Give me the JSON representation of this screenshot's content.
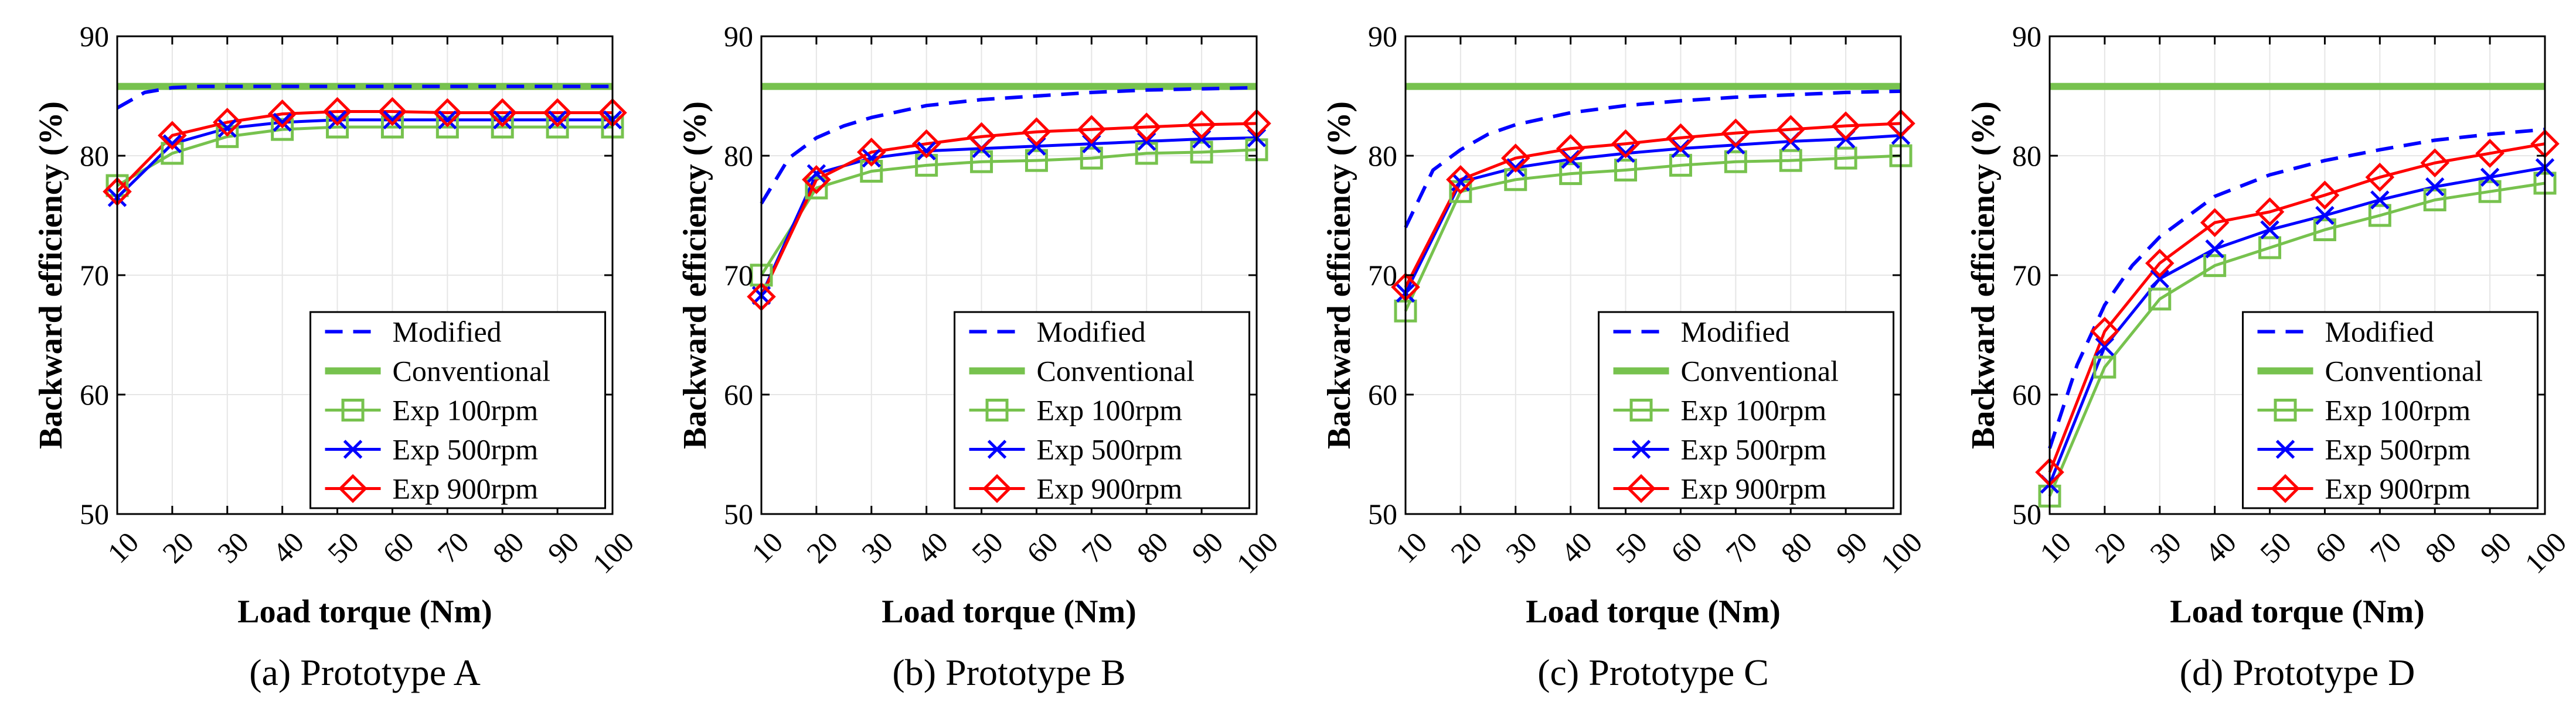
{
  "figure": {
    "captions": [
      "(a) Prototype A",
      "(b) Prototype B",
      "(c) Prototype C",
      "(d) Prototype D"
    ]
  },
  "legend": {
    "modified": "Modified",
    "conventional": "Conventional",
    "exp100": "Exp 100rpm",
    "exp500": "Exp 500rpm",
    "exp900": "Exp 900rpm"
  },
  "colors": {
    "modified": "#0000ff",
    "conventional": "#77c24e",
    "exp100": "#77c24e",
    "exp500": "#0000ff",
    "exp900": "#ff0000"
  },
  "chart_data": [
    {
      "type": "line",
      "title": "(a) Prototype A",
      "xlabel": "Load torque (Nm)",
      "ylabel": "Backward efficiency (%)",
      "xlim": [
        10,
        100
      ],
      "ylim": [
        50,
        90
      ],
      "yticks": [
        50,
        60,
        70,
        80,
        90
      ],
      "xticks": [
        10,
        20,
        30,
        40,
        50,
        60,
        70,
        80,
        90,
        100
      ],
      "grid": true,
      "legend_position": "bottom-right",
      "series": [
        {
          "name": "Modified",
          "style": "dashed",
          "x": [
            10,
            15,
            20,
            25,
            30,
            40,
            50,
            60,
            70,
            80,
            90,
            100
          ],
          "values": [
            84.0,
            85.3,
            85.7,
            85.8,
            85.8,
            85.8,
            85.8,
            85.8,
            85.8,
            85.8,
            85.8,
            85.8
          ]
        },
        {
          "name": "Conventional",
          "style": "solid-thick",
          "x": [
            10,
            100
          ],
          "values": [
            85.8,
            85.8
          ]
        },
        {
          "name": "Exp 100rpm",
          "marker": "square",
          "x": [
            10,
            20,
            30,
            40,
            50,
            60,
            70,
            80,
            90,
            100
          ],
          "values": [
            77.5,
            80.2,
            81.6,
            82.2,
            82.4,
            82.4,
            82.4,
            82.4,
            82.4,
            82.4
          ]
        },
        {
          "name": "Exp 500rpm",
          "marker": "x",
          "x": [
            10,
            20,
            30,
            40,
            50,
            60,
            70,
            80,
            90,
            100
          ],
          "values": [
            76.5,
            81.0,
            82.3,
            82.8,
            83.0,
            83.0,
            83.0,
            83.0,
            83.0,
            83.0
          ]
        },
        {
          "name": "Exp 900rpm",
          "marker": "diamond",
          "x": [
            10,
            20,
            30,
            40,
            50,
            60,
            70,
            80,
            90,
            100
          ],
          "values": [
            77.0,
            81.7,
            82.8,
            83.5,
            83.7,
            83.7,
            83.6,
            83.6,
            83.6,
            83.6
          ]
        }
      ]
    },
    {
      "type": "line",
      "title": "(b) Prototype B",
      "xlabel": "Load torque (Nm)",
      "ylabel": "Backward efficiency (%)",
      "xlim": [
        10,
        100
      ],
      "ylim": [
        50,
        90
      ],
      "yticks": [
        50,
        60,
        70,
        80,
        90
      ],
      "xticks": [
        10,
        20,
        30,
        40,
        50,
        60,
        70,
        80,
        90,
        100
      ],
      "grid": true,
      "legend_position": "bottom-right",
      "series": [
        {
          "name": "Modified",
          "style": "dashed",
          "x": [
            10,
            15,
            20,
            25,
            30,
            40,
            50,
            60,
            70,
            80,
            90,
            100
          ],
          "values": [
            76.0,
            79.8,
            81.5,
            82.5,
            83.2,
            84.2,
            84.7,
            85.0,
            85.3,
            85.5,
            85.6,
            85.7
          ]
        },
        {
          "name": "Conventional",
          "style": "solid-thick",
          "x": [
            10,
            100
          ],
          "values": [
            85.8,
            85.8
          ]
        },
        {
          "name": "Exp 100rpm",
          "marker": "square",
          "x": [
            10,
            20,
            30,
            40,
            50,
            60,
            70,
            80,
            90,
            100
          ],
          "values": [
            70.0,
            77.3,
            78.7,
            79.2,
            79.5,
            79.6,
            79.8,
            80.2,
            80.3,
            80.5
          ]
        },
        {
          "name": "Exp 500rpm",
          "marker": "x",
          "x": [
            10,
            20,
            30,
            40,
            50,
            60,
            70,
            80,
            90,
            100
          ],
          "values": [
            68.3,
            78.5,
            79.8,
            80.4,
            80.6,
            80.8,
            81.0,
            81.2,
            81.4,
            81.5
          ]
        },
        {
          "name": "Exp 900rpm",
          "marker": "diamond",
          "x": [
            10,
            20,
            30,
            40,
            50,
            60,
            70,
            80,
            90,
            100
          ],
          "values": [
            68.2,
            78.0,
            80.3,
            81.0,
            81.6,
            82.0,
            82.2,
            82.4,
            82.6,
            82.7
          ]
        }
      ]
    },
    {
      "type": "line",
      "title": "(c) Prototype C",
      "xlabel": "Load torque (Nm)",
      "ylabel": "Backward efficiency (%)",
      "xlim": [
        10,
        100
      ],
      "ylim": [
        50,
        90
      ],
      "yticks": [
        50,
        60,
        70,
        80,
        90
      ],
      "xticks": [
        10,
        20,
        30,
        40,
        50,
        60,
        70,
        80,
        90,
        100
      ],
      "grid": true,
      "legend_position": "bottom-right",
      "series": [
        {
          "name": "Modified",
          "style": "dashed",
          "x": [
            10,
            15,
            20,
            25,
            30,
            40,
            50,
            60,
            70,
            80,
            90,
            100
          ],
          "values": [
            74.0,
            78.8,
            80.5,
            81.8,
            82.6,
            83.6,
            84.2,
            84.6,
            84.9,
            85.1,
            85.3,
            85.4
          ]
        },
        {
          "name": "Conventional",
          "style": "solid-thick",
          "x": [
            10,
            100
          ],
          "values": [
            85.8,
            85.8
          ]
        },
        {
          "name": "Exp 100rpm",
          "marker": "square",
          "x": [
            10,
            20,
            30,
            40,
            50,
            60,
            70,
            80,
            90,
            100
          ],
          "values": [
            67.0,
            77.0,
            78.0,
            78.5,
            78.8,
            79.2,
            79.5,
            79.6,
            79.8,
            80.0
          ]
        },
        {
          "name": "Exp 500rpm",
          "marker": "x",
          "x": [
            10,
            20,
            30,
            40,
            50,
            60,
            70,
            80,
            90,
            100
          ],
          "values": [
            68.5,
            77.8,
            79.0,
            79.7,
            80.2,
            80.6,
            80.9,
            81.2,
            81.4,
            81.7
          ]
        },
        {
          "name": "Exp 900rpm",
          "marker": "diamond",
          "x": [
            10,
            20,
            30,
            40,
            50,
            60,
            70,
            80,
            90,
            100
          ],
          "values": [
            69.0,
            78.0,
            79.8,
            80.6,
            81.0,
            81.5,
            81.9,
            82.2,
            82.5,
            82.7
          ]
        }
      ]
    },
    {
      "type": "line",
      "title": "(d) Prototype D",
      "xlabel": "Load torque (Nm)",
      "ylabel": "Backward efficiency (%)",
      "xlim": [
        10,
        100
      ],
      "ylim": [
        50,
        90
      ],
      "yticks": [
        50,
        60,
        70,
        80,
        90
      ],
      "xticks": [
        10,
        20,
        30,
        40,
        50,
        60,
        70,
        80,
        90,
        100
      ],
      "grid": true,
      "legend_position": "bottom-right",
      "series": [
        {
          "name": "Modified",
          "style": "dashed",
          "x": [
            10,
            15,
            20,
            25,
            30,
            40,
            50,
            60,
            70,
            80,
            90,
            100
          ],
          "values": [
            55.5,
            62.5,
            67.5,
            70.8,
            73.2,
            76.6,
            78.4,
            79.6,
            80.5,
            81.3,
            81.8,
            82.2
          ]
        },
        {
          "name": "Conventional",
          "style": "solid-thick",
          "x": [
            10,
            100
          ],
          "values": [
            85.8,
            85.8
          ]
        },
        {
          "name": "Exp 100rpm",
          "marker": "square",
          "x": [
            10,
            20,
            30,
            40,
            50,
            60,
            70,
            80,
            90,
            100
          ],
          "values": [
            51.5,
            62.3,
            68.0,
            70.8,
            72.3,
            73.8,
            75.0,
            76.3,
            77.0,
            77.7
          ]
        },
        {
          "name": "Exp 500rpm",
          "marker": "x",
          "x": [
            10,
            20,
            30,
            40,
            50,
            60,
            70,
            80,
            90,
            100
          ],
          "values": [
            52.5,
            64.0,
            69.7,
            72.2,
            73.8,
            75.0,
            76.3,
            77.4,
            78.2,
            79.0
          ]
        },
        {
          "name": "Exp 900rpm",
          "marker": "diamond",
          "x": [
            10,
            20,
            30,
            40,
            50,
            60,
            70,
            80,
            90,
            100
          ],
          "values": [
            53.5,
            65.3,
            71.0,
            74.4,
            75.3,
            76.7,
            78.2,
            79.4,
            80.2,
            81.0
          ]
        }
      ]
    }
  ]
}
